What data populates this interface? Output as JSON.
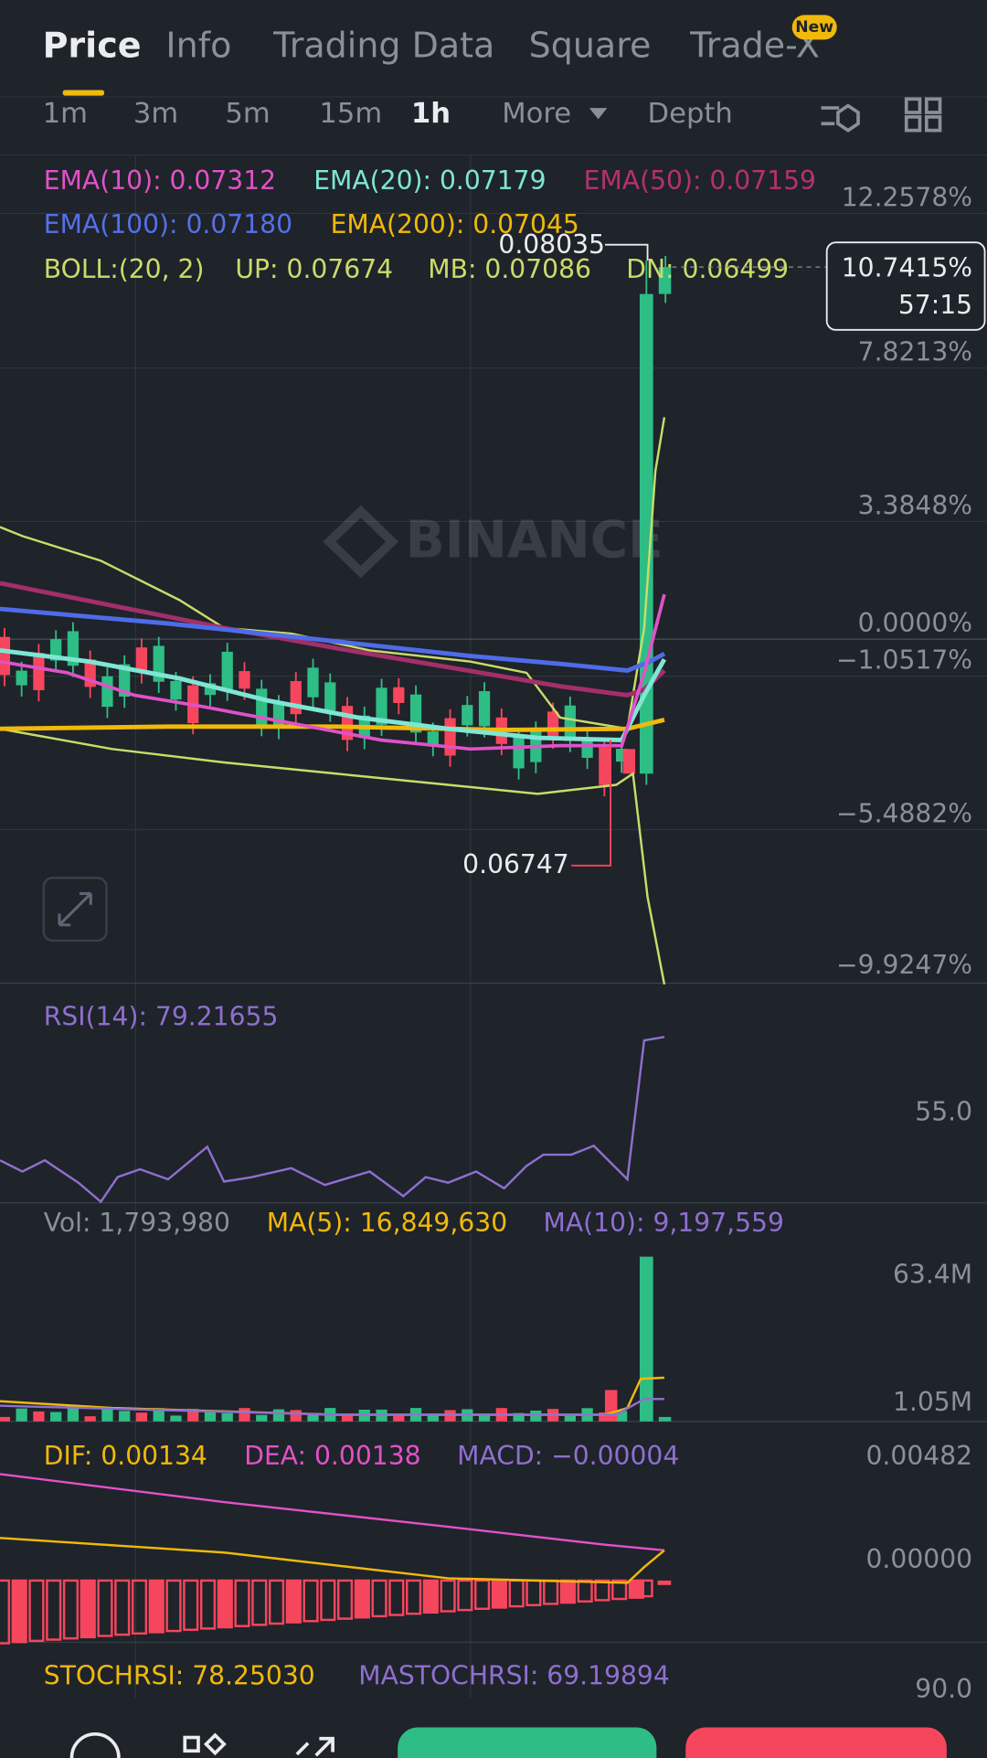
{
  "tabs": [
    "Price",
    "Info",
    "Trading Data",
    "Square",
    "Trade-X"
  ],
  "badge": "New",
  "intervals": [
    "1m",
    "3m",
    "5m",
    "15m",
    "1h",
    "More",
    "Depth"
  ],
  "ema": [
    "EMA(10): 0.07312",
    "EMA(20): 0.07179",
    "EMA(50): 0.07159",
    "EMA(100): 0.07180",
    "EMA(200): 0.07045"
  ],
  "boll": [
    "BOLL:(20, 2)",
    "UP: 0.07674",
    "MB: 0.07086",
    "DN: 0.06499"
  ],
  "price_axis": [
    "12.2578%",
    "7.8213%",
    "3.3848%",
    "0.0000%",
    "−1.0517%",
    "−5.4882%",
    "−9.9247%"
  ],
  "current": {
    "change": "10.7415%",
    "countdown": "57:15"
  },
  "high": "0.08035",
  "low": "0.06747",
  "watermark": "BINANCE",
  "rsi": {
    "label": "RSI(14): 79.21655",
    "axis": "55.0"
  },
  "volume": {
    "labels": [
      "Vol: 1,793,980",
      "MA(5): 16,849,630",
      "MA(10): 9,197,559"
    ],
    "axis": [
      "63.4M",
      "1.05M"
    ]
  },
  "macd": {
    "labels": [
      "DIF: 0.00134",
      "DEA: 0.00138",
      "MACD: −0.00004"
    ],
    "axis": [
      "0.00482",
      "0.00000"
    ]
  },
  "stochrsi": {
    "labels": [
      "STOCHRSI: 78.25030",
      "MASTOCHRSI: 69.19894"
    ],
    "axis": "90.0"
  }
}
